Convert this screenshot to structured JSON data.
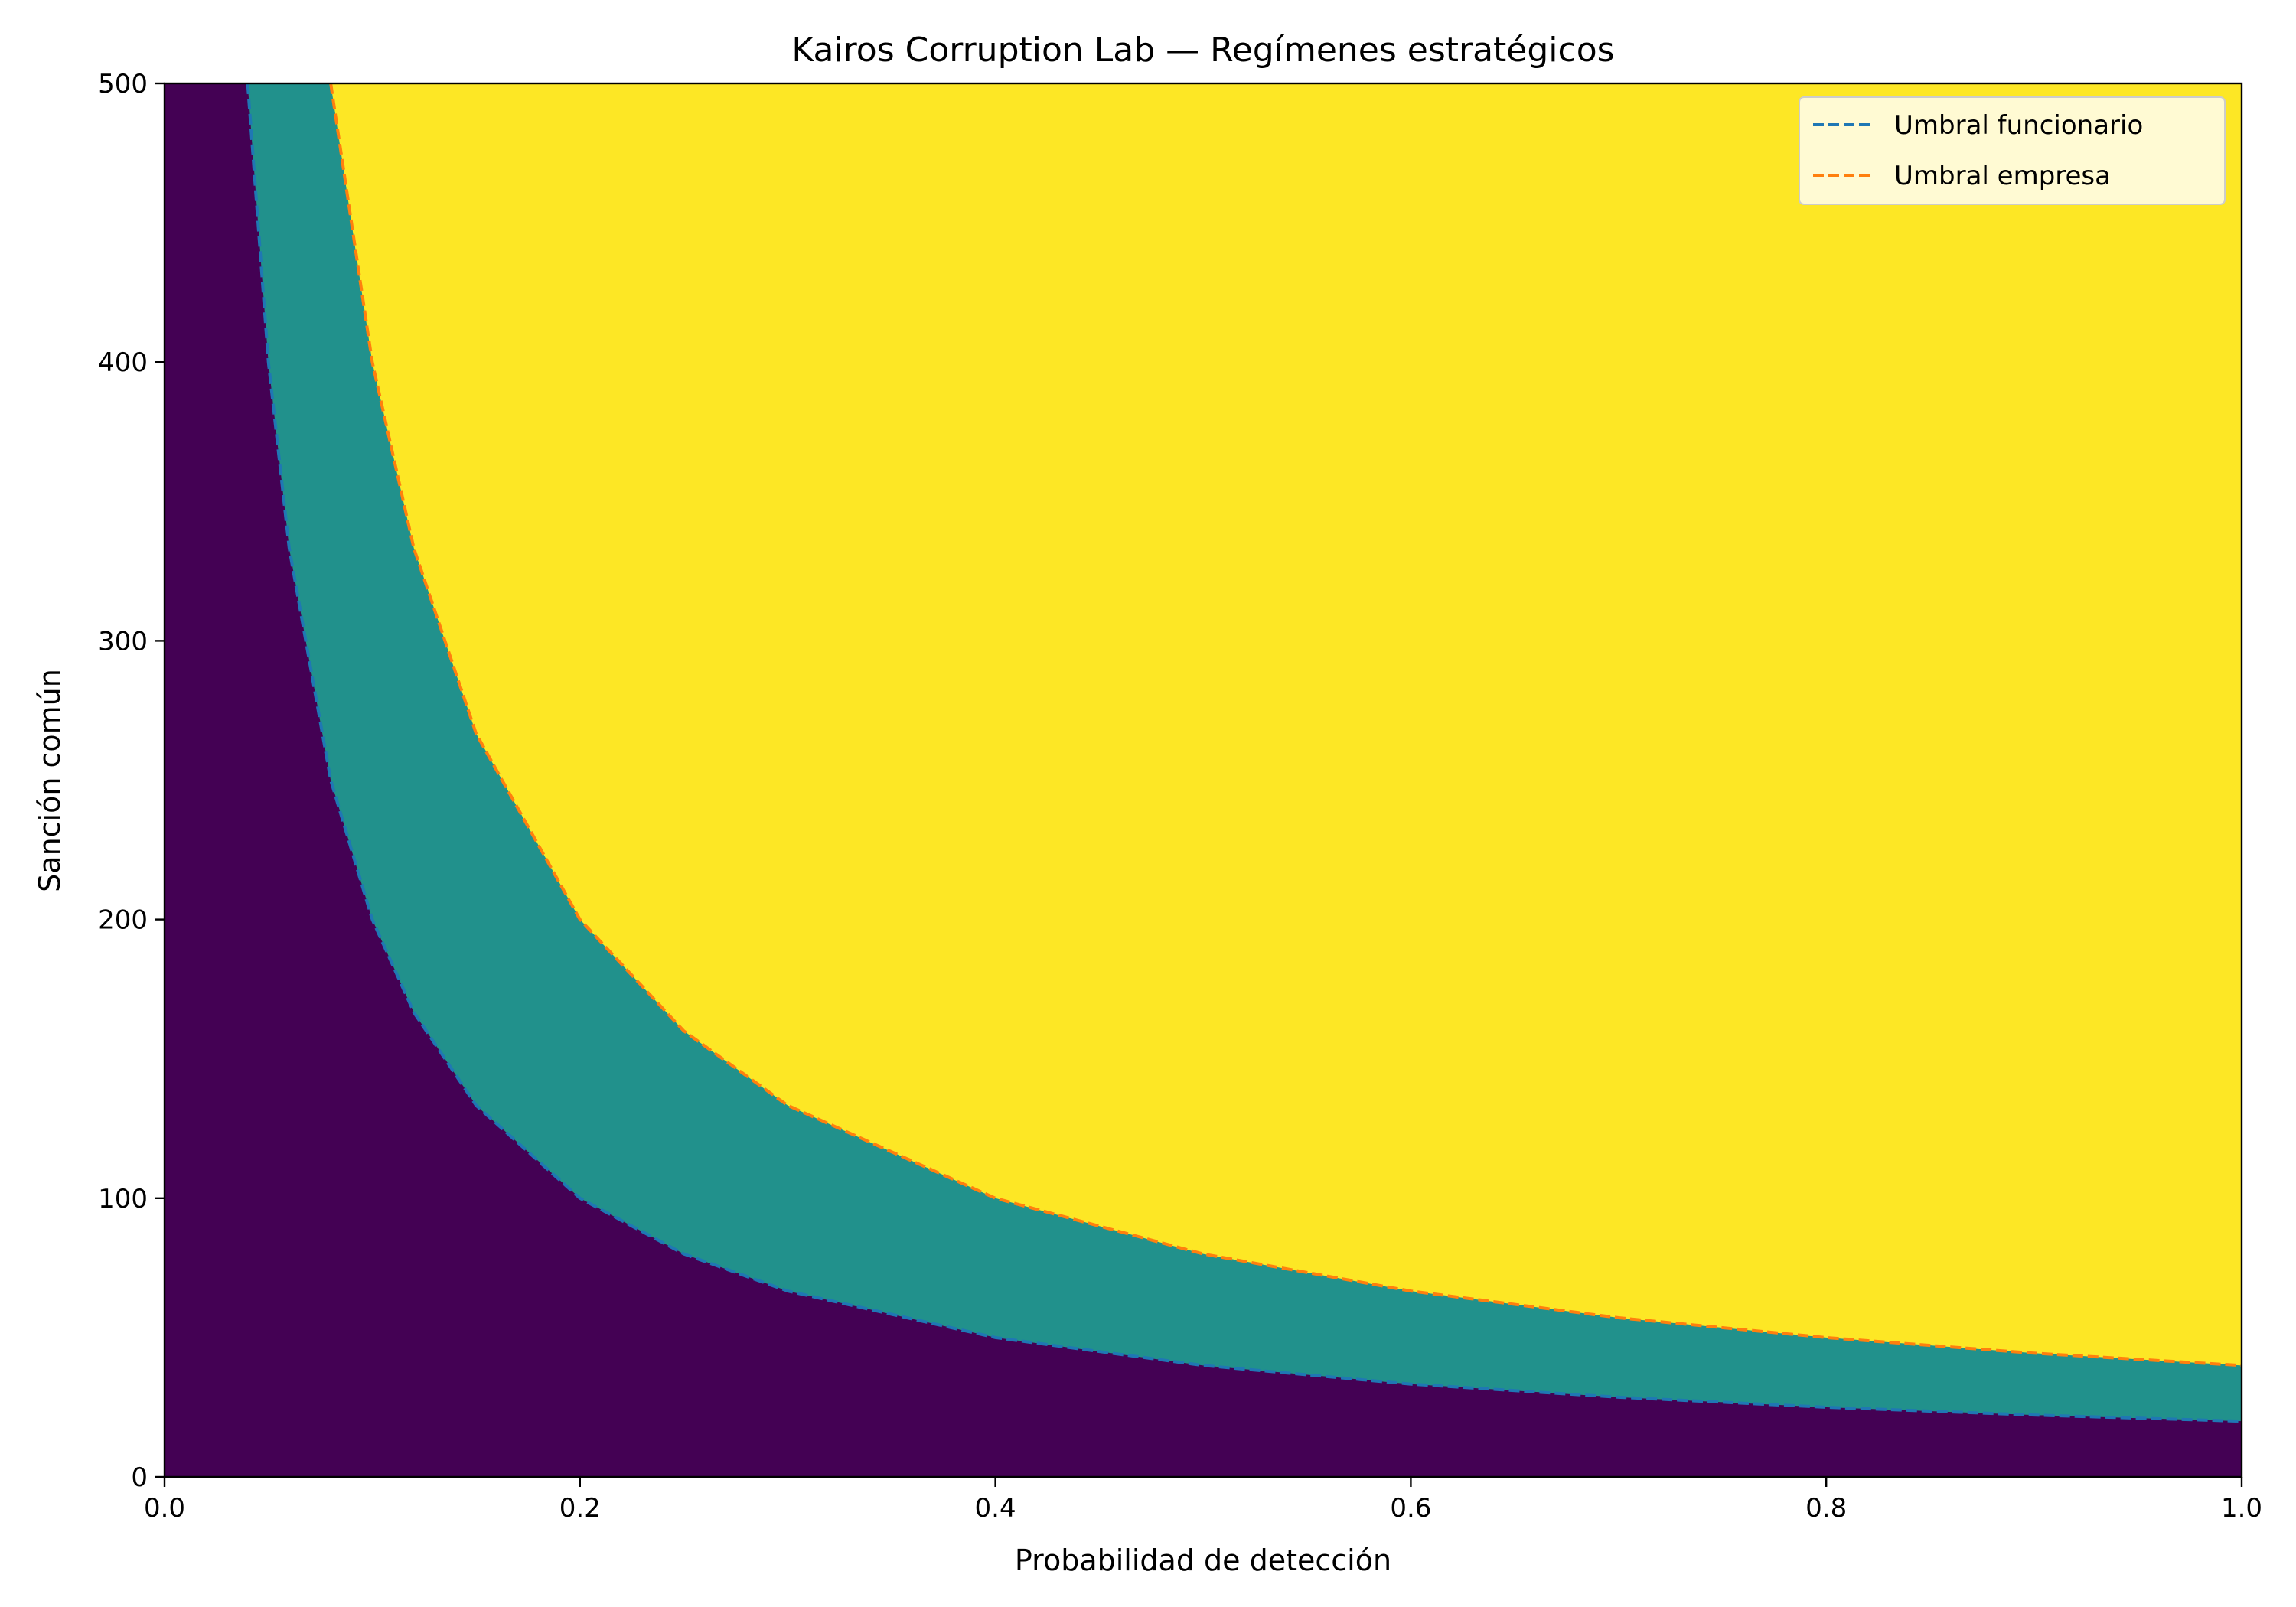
{
  "chart_data": {
    "type": "region",
    "title": "Kairos Corruption Lab — Regímenes estratégicos",
    "xlabel": "Probabilidad de detección",
    "ylabel": "Sanción común",
    "xlim": [
      0,
      1
    ],
    "ylim": [
      0,
      500
    ],
    "xticks": [
      {
        "value": 0,
        "label": "0.0"
      },
      0.2,
      0.4,
      0.6,
      0.8,
      {
        "value": 1,
        "label": "1.0"
      }
    ],
    "yticks": [
      0,
      100,
      200,
      300,
      400,
      500
    ],
    "region_colors": [
      "#440154",
      "#21918c",
      "#fde725"
    ],
    "legend": "upper right",
    "series": [
      {
        "name": "Umbral funcionario",
        "color": "#1f77b4",
        "x": [
          0.04,
          0.05,
          0.06,
          0.08,
          0.1,
          0.12,
          0.15,
          0.2,
          0.25,
          0.3,
          0.4,
          0.5,
          0.6,
          0.7,
          0.8,
          0.9,
          1.0
        ],
        "values": [
          500,
          400,
          333.3,
          250,
          200,
          166.7,
          133.3,
          100,
          80,
          66.7,
          50,
          40,
          33.3,
          28.6,
          25,
          22.2,
          20
        ]
      },
      {
        "name": "Umbral empresa",
        "color": "#ff7f0e",
        "x": [
          0.08,
          0.1,
          0.12,
          0.15,
          0.2,
          0.25,
          0.3,
          0.4,
          0.5,
          0.6,
          0.7,
          0.8,
          0.9,
          1.0
        ],
        "values": [
          500,
          400,
          333.3,
          266.7,
          200,
          160,
          133.3,
          100,
          80,
          66.7,
          57.1,
          50,
          44.4,
          40
        ]
      }
    ]
  }
}
